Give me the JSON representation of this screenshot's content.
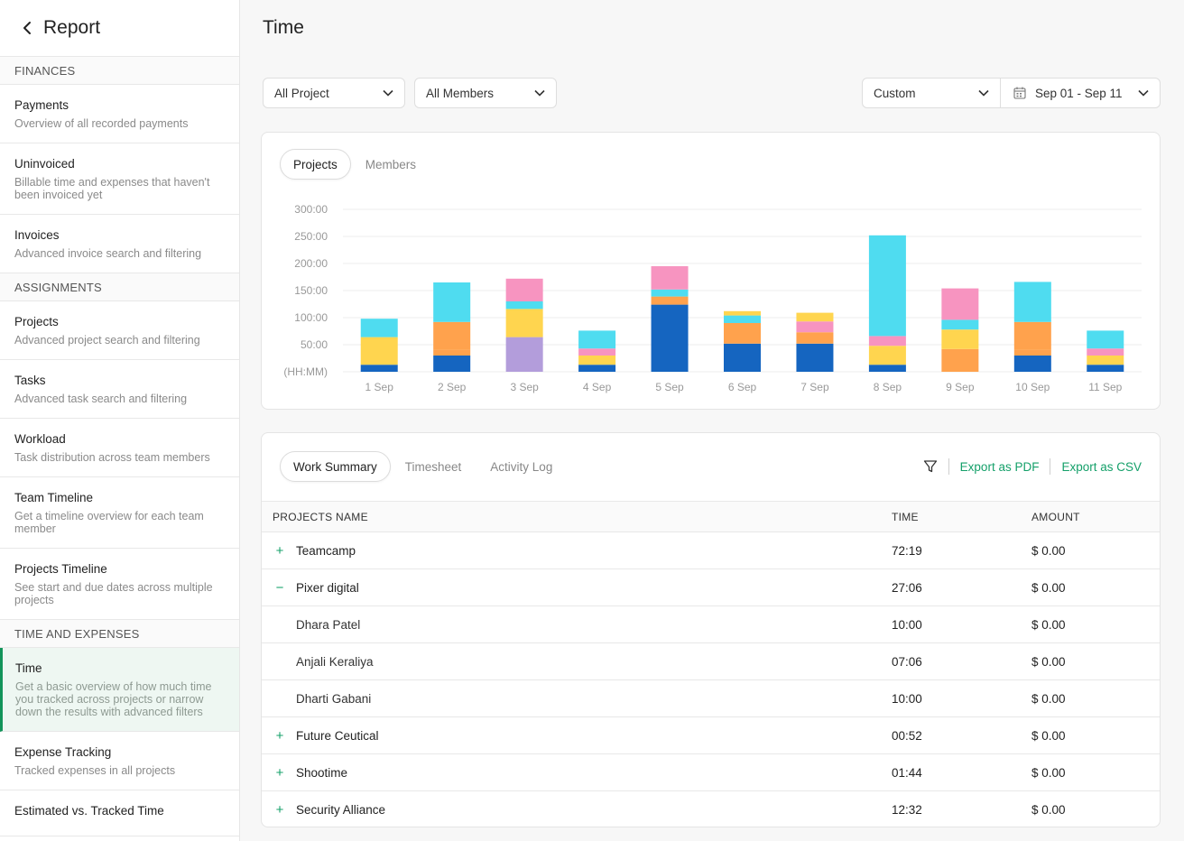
{
  "sidebar": {
    "title": "Report",
    "sections": [
      {
        "label": "FINANCES",
        "items": [
          {
            "title": "Payments",
            "desc": "Overview of all recorded payments"
          },
          {
            "title": "Uninvoiced",
            "desc": "Billable time and expenses that haven't been invoiced yet"
          },
          {
            "title": "Invoices",
            "desc": "Advanced invoice search and filtering"
          }
        ]
      },
      {
        "label": "ASSIGNMENTS",
        "items": [
          {
            "title": "Projects",
            "desc": "Advanced project search and filtering"
          },
          {
            "title": "Tasks",
            "desc": "Advanced task search and filtering"
          },
          {
            "title": "Workload",
            "desc": "Task distribution across team members"
          },
          {
            "title": "Team Timeline",
            "desc": "Get a timeline overview for each team member"
          },
          {
            "title": "Projects Timeline",
            "desc": "See start and due dates across multiple projects"
          }
        ]
      },
      {
        "label": "TIME AND EXPENSES",
        "items": [
          {
            "title": "Time",
            "desc": "Get a basic overview of how much time you tracked across projects or narrow down the results with advanced filters",
            "active": true
          },
          {
            "title": "Expense Tracking",
            "desc": "Tracked expenses in all projects"
          },
          {
            "title": "Estimated vs. Tracked Time",
            "desc": ""
          }
        ]
      }
    ]
  },
  "header": {
    "title": "Time"
  },
  "filters": {
    "project": "All Project",
    "members": "All Members",
    "range_type": "Custom",
    "date_range": "Sep 01 - Sep 11"
  },
  "chart_tabs": {
    "active": "Projects",
    "other": "Members"
  },
  "chart_data": {
    "type": "bar",
    "stacked": true,
    "categories": [
      "1 Sep",
      "2 Sep",
      "3 Sep",
      "4 Sep",
      "5 Sep",
      "6 Sep",
      "7 Sep",
      "8 Sep",
      "9 Sep",
      "10 Sep",
      "11 Sep"
    ],
    "ylabel": "(HH:MM)",
    "yticks": [
      "(HH:MM)",
      "50:00",
      "100:00",
      "150:00",
      "200:00",
      "250:00",
      "300:00"
    ],
    "ylim": [
      0,
      300
    ],
    "series": [
      {
        "color": "#1565c0",
        "values": [
          13,
          30,
          0,
          13,
          124,
          52,
          52,
          13,
          0,
          30,
          13
        ]
      },
      {
        "color": "#b39ddb",
        "values": [
          0,
          0,
          64,
          0,
          0,
          0,
          0,
          0,
          0,
          0,
          0
        ]
      },
      {
        "color": "#ffa24d",
        "values": [
          0,
          11,
          0,
          0,
          15,
          38,
          8,
          0,
          42,
          11,
          0
        ]
      },
      {
        "color": "#ffd54f",
        "values": [
          51,
          0,
          52,
          17,
          0,
          0,
          0,
          35,
          36,
          0,
          17
        ]
      },
      {
        "color": "#f794c0",
        "values": [
          0,
          0,
          0,
          13,
          0,
          0,
          0,
          18,
          0,
          0,
          13
        ]
      },
      {
        "color": "#ffa24d",
        "values": [
          0,
          51,
          0,
          0,
          0,
          0,
          13,
          0,
          0,
          51,
          0
        ]
      },
      {
        "color": "#4fdcf0",
        "values": [
          34,
          73,
          14,
          33,
          13,
          14,
          0,
          186,
          18,
          74,
          33
        ]
      },
      {
        "color": "#f794c0",
        "values": [
          0,
          0,
          42,
          0,
          43,
          0,
          20,
          0,
          58,
          0,
          0
        ]
      },
      {
        "color": "#ffd54f",
        "values": [
          0,
          0,
          0,
          0,
          0,
          8,
          16,
          0,
          0,
          0,
          0
        ]
      }
    ]
  },
  "table_tabs": {
    "active": "Work Summary",
    "tabs": [
      "Timesheet",
      "Activity Log"
    ]
  },
  "table_actions": {
    "export_pdf": "Export as PDF",
    "export_csv": "Export as CSV"
  },
  "table": {
    "headers": {
      "name": "PROJECTS NAME",
      "time": "TIME",
      "amount": "AMOUNT"
    },
    "rows": [
      {
        "kind": "parent",
        "toggle": "+",
        "name": "Teamcamp",
        "time": "72:19",
        "amount": "$ 0.00"
      },
      {
        "kind": "parent",
        "toggle": "−",
        "name": "Pixer digital",
        "time": "27:06",
        "amount": "$ 0.00"
      },
      {
        "kind": "child",
        "name": "Dhara Patel",
        "time": "10:00",
        "amount": "$ 0.00"
      },
      {
        "kind": "child",
        "name": "Anjali Keraliya",
        "time": "07:06",
        "amount": "$ 0.00"
      },
      {
        "kind": "child",
        "name": "Dharti Gabani",
        "time": "10:00",
        "amount": "$ 0.00"
      },
      {
        "kind": "parent",
        "toggle": "+",
        "name": "Future Ceutical",
        "time": "00:52",
        "amount": "$ 0.00"
      },
      {
        "kind": "parent",
        "toggle": "+",
        "name": "Shootime",
        "time": "01:44",
        "amount": "$ 0.00"
      },
      {
        "kind": "parent",
        "toggle": "+",
        "name": "Security Alliance",
        "time": "12:32",
        "amount": "$ 0.00"
      }
    ]
  }
}
